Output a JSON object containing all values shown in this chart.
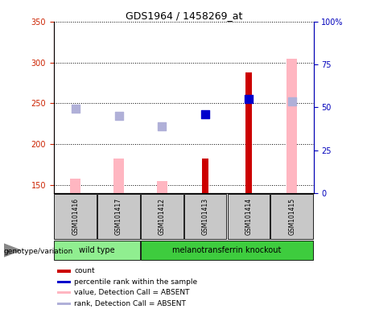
{
  "title": "GDS1964 / 1458269_at",
  "samples": [
    "GSM101416",
    "GSM101417",
    "GSM101412",
    "GSM101413",
    "GSM101414",
    "GSM101415"
  ],
  "wt_count": 2,
  "mt_count": 4,
  "wt_label": "wild type",
  "mt_label": "melanotransferrin knockout",
  "wt_color": "#90EE90",
  "mt_color": "#3ECC3E",
  "count_values": [
    null,
    null,
    null,
    182,
    288,
    null
  ],
  "count_color": "#CC0000",
  "value_absent_values": [
    158,
    182,
    155,
    null,
    null,
    305
  ],
  "value_absent_color": "#FFB6C1",
  "rank_absent_values": [
    243,
    235,
    222,
    null,
    null,
    252
  ],
  "rank_absent_color": "#B0B0D8",
  "percentile_values": [
    null,
    null,
    null,
    237,
    255,
    null
  ],
  "percentile_color": "#0000CC",
  "ylim_left": [
    140,
    350
  ],
  "ylim_right": [
    0,
    100
  ],
  "yticks_left": [
    150,
    200,
    250,
    300,
    350
  ],
  "yticks_right": [
    0,
    25,
    50,
    75,
    100
  ],
  "left_tick_color": "#CC2200",
  "right_tick_color": "#0000BB",
  "pink_bar_width": 0.25,
  "red_bar_width": 0.15,
  "marker_size": 55,
  "legend_labels": [
    "count",
    "percentile rank within the sample",
    "value, Detection Call = ABSENT",
    "rank, Detection Call = ABSENT"
  ],
  "legend_colors": [
    "#CC0000",
    "#0000CC",
    "#FFB6C1",
    "#B0B0D8"
  ],
  "genotype_label": "genotype/variation",
  "cell_bg_color": "#C8C8C8",
  "arrow_color": "#888888"
}
